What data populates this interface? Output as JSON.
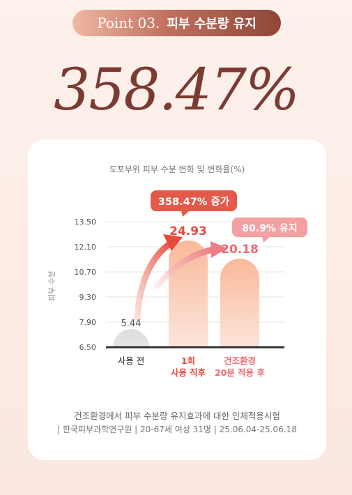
{
  "header": {
    "point_label": "Point 03.",
    "title": "피부 수분량 유지",
    "big_value": "358.47%"
  },
  "chart_data": {
    "type": "bar",
    "title": "도포부위 피부 수분 변화 및 변화율(%)",
    "ylabel": "피부 수분",
    "yticks": [
      "13.50",
      "12.10",
      "10.70",
      "9.30",
      "7.90",
      "6.50"
    ],
    "ylim": [
      6.5,
      13.5
    ],
    "categories": [
      {
        "line1": "사용 전",
        "line2": ""
      },
      {
        "line1": "1회",
        "line2": "사용 직후"
      },
      {
        "line1": "건조환경",
        "line2": "20분 적용 후"
      }
    ],
    "values": [
      5.44,
      24.93,
      20.18
    ],
    "value_labels": [
      "5.44",
      "24.93",
      "20.18"
    ],
    "callouts": [
      {
        "text": "358.47% 증가",
        "color": "#e35a4a"
      },
      {
        "text": "80.9% 유지",
        "color": "#ee8c8f"
      }
    ],
    "colors": {
      "bar_before": "#e8e8e8",
      "bar_after_top": "#f9b99a",
      "bar_after_bottom": "#fdeee7",
      "value_accent": "#e44b3f",
      "value_accent2": "#ec6b73",
      "axis": "#333333"
    }
  },
  "footer": {
    "note1": "건조환경에서 피부 수분량 유지효과에 대한 인체적용시험",
    "note2": "| 한국피부과학연구원 | 20-67세 여성 31명 | 25.06.04-25.06.18"
  }
}
